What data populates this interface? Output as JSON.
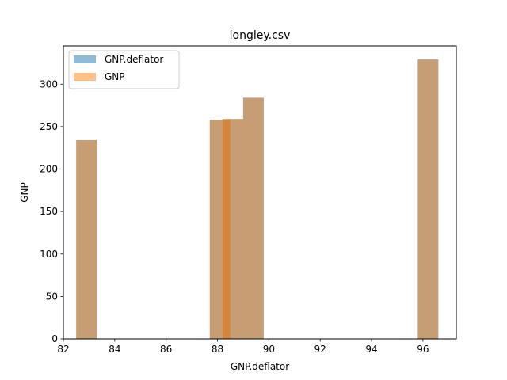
{
  "chart_data": {
    "type": "bar",
    "title": "longley.csv",
    "xlabel": "GNP.deflator",
    "ylabel": "GNP",
    "xlim": [
      82,
      97.3
    ],
    "ylim": [
      0,
      345
    ],
    "xticks": [
      82,
      84,
      86,
      88,
      90,
      92,
      94,
      96
    ],
    "yticks": [
      0,
      50,
      100,
      150,
      200,
      250,
      300
    ],
    "legend": "upper-left",
    "grid": false,
    "bar_width": 0.8,
    "series": [
      {
        "name": "GNP.deflator",
        "color": "#1f77b4",
        "opacity": 0.5,
        "x": [
          82.9,
          88.1,
          88.6,
          89.4,
          96.2
        ],
        "y": [
          234,
          258,
          259,
          284,
          329
        ]
      },
      {
        "name": "GNP",
        "color": "#ff7f0e",
        "opacity": 0.5,
        "x": [
          82.9,
          88.1,
          88.6,
          89.4,
          96.2
        ],
        "y": [
          234,
          258,
          259,
          284,
          329
        ]
      }
    ]
  }
}
